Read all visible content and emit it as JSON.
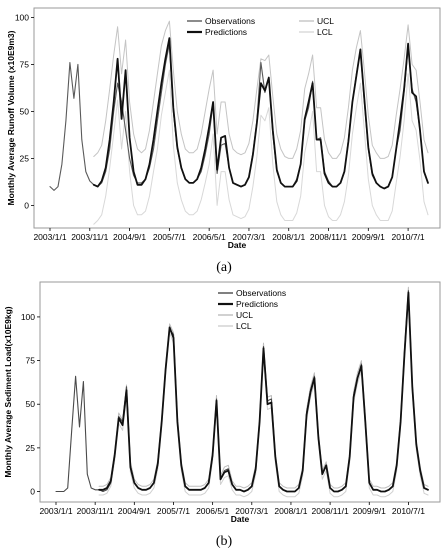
{
  "chart_data": [
    {
      "panel": "(a)",
      "type": "line",
      "xlabel": "Date",
      "ylabel": "Monthly Average Runoff Volume (x10E9m3)",
      "ylim": [
        -12,
        105
      ],
      "yticks": [
        0,
        25,
        50,
        75,
        100
      ],
      "xticks": [
        "2003/1/1",
        "2003/11/1",
        "2004/9/1",
        "2005/7/1",
        "2006/5/1",
        "2007/3/1",
        "2008/1/1",
        "2008/11/1",
        "2009/9/1",
        "2010/7/1"
      ],
      "legend": {
        "placement": "top-center",
        "columns": [
          [
            "Observations",
            "Predictions"
          ],
          [
            "UCL",
            "LCL"
          ]
        ]
      },
      "x": [
        "2003/1",
        "2003/2",
        "2003/3",
        "2003/4",
        "2003/5",
        "2003/6",
        "2003/7",
        "2003/8",
        "2003/9",
        "2003/10",
        "2003/11",
        "2003/12",
        "2004/1",
        "2004/2",
        "2004/3",
        "2004/4",
        "2004/5",
        "2004/6",
        "2004/7",
        "2004/8",
        "2004/9",
        "2004/10",
        "2004/11",
        "2004/12",
        "2005/1",
        "2005/2",
        "2005/3",
        "2005/4",
        "2005/5",
        "2005/6",
        "2005/7",
        "2005/8",
        "2005/9",
        "2005/10",
        "2005/11",
        "2005/12",
        "2006/1",
        "2006/2",
        "2006/3",
        "2006/4",
        "2006/5",
        "2006/6",
        "2006/7",
        "2006/8",
        "2006/9",
        "2006/10",
        "2006/11",
        "2006/12",
        "2007/1",
        "2007/2",
        "2007/3",
        "2007/4",
        "2007/5",
        "2007/6",
        "2007/7",
        "2007/8",
        "2007/9",
        "2007/10",
        "2007/11",
        "2007/12",
        "2008/1",
        "2008/2",
        "2008/3",
        "2008/4",
        "2008/5",
        "2008/6",
        "2008/7",
        "2008/8",
        "2008/9",
        "2008/10",
        "2008/11",
        "2008/12",
        "2009/1",
        "2009/2",
        "2009/3",
        "2009/4",
        "2009/5",
        "2009/6",
        "2009/7",
        "2009/8",
        "2009/9",
        "2009/10",
        "2009/11",
        "2009/12",
        "2010/1",
        "2010/2",
        "2010/3",
        "2010/4",
        "2010/5",
        "2010/6",
        "2010/7",
        "2010/8",
        "2010/9",
        "2010/10",
        "2010/11",
        "2010/12"
      ],
      "series": [
        {
          "name": "Observations",
          "color": "#5a5a5a",
          "values": [
            10,
            8,
            10,
            22,
            45,
            76,
            57,
            75,
            35,
            18,
            13,
            11,
            10,
            12,
            18,
            30,
            50,
            65,
            55,
            40,
            25,
            16,
            12,
            12,
            14,
            20,
            30,
            45,
            60,
            75,
            86,
            50,
            30,
            20,
            14,
            12,
            12,
            14,
            18,
            27,
            38,
            54,
            17,
            32,
            33,
            20,
            12,
            11,
            10,
            11,
            15,
            28,
            45,
            76,
            60,
            68,
            38,
            18,
            12,
            10,
            10,
            10,
            14,
            22,
            45,
            52,
            66,
            35,
            36,
            18,
            13,
            10,
            10,
            12,
            18,
            35,
            55,
            70,
            82,
            55,
            30,
            16,
            12,
            10,
            9,
            10,
            15,
            30,
            40,
            60,
            84,
            62,
            55,
            40,
            18,
            12
          ]
        },
        {
          "name": "Predictions",
          "color": "#111111",
          "values": [
            null,
            null,
            null,
            null,
            null,
            null,
            null,
            null,
            null,
            null,
            null,
            11,
            10,
            13,
            20,
            35,
            55,
            78,
            46,
            72,
            36,
            18,
            11,
            11,
            14,
            22,
            35,
            50,
            65,
            78,
            89,
            52,
            31,
            20,
            14,
            12,
            12,
            14,
            20,
            30,
            42,
            55,
            19,
            36,
            37,
            20,
            12,
            11,
            10,
            11,
            15,
            27,
            44,
            65,
            61,
            68,
            40,
            19,
            12,
            10,
            10,
            10,
            13,
            22,
            46,
            55,
            65,
            35,
            35,
            17,
            12,
            10,
            10,
            12,
            18,
            34,
            55,
            69,
            83,
            57,
            31,
            17,
            12,
            10,
            9,
            10,
            15,
            30,
            45,
            62,
            86,
            60,
            58,
            40,
            18,
            12
          ]
        },
        {
          "name": "UCL",
          "color": "#c4c4c4",
          "values": [
            null,
            null,
            null,
            null,
            null,
            null,
            null,
            null,
            null,
            null,
            null,
            26,
            28,
            32,
            45,
            62,
            80,
            95,
            70,
            88,
            55,
            38,
            30,
            28,
            30,
            40,
            55,
            70,
            85,
            93,
            98,
            72,
            50,
            38,
            30,
            28,
            28,
            30,
            38,
            50,
            62,
            72,
            38,
            55,
            55,
            38,
            30,
            28,
            27,
            28,
            33,
            45,
            62,
            78,
            77,
            80,
            58,
            38,
            30,
            26,
            25,
            25,
            30,
            40,
            62,
            70,
            80,
            52,
            52,
            35,
            28,
            25,
            25,
            28,
            36,
            52,
            72,
            84,
            93,
            72,
            48,
            32,
            28,
            25,
            25,
            26,
            32,
            48,
            62,
            78,
            96,
            75,
            72,
            55,
            35,
            28
          ]
        },
        {
          "name": "LCL",
          "color": "#d8d8d8",
          "values": [
            null,
            null,
            null,
            null,
            null,
            null,
            null,
            null,
            null,
            null,
            null,
            -10,
            -8,
            -5,
            5,
            20,
            38,
            56,
            30,
            50,
            18,
            0,
            -5,
            -5,
            -3,
            5,
            18,
            30,
            48,
            60,
            72,
            32,
            12,
            3,
            -3,
            -5,
            -5,
            -3,
            3,
            12,
            22,
            38,
            0,
            18,
            18,
            3,
            -5,
            -6,
            -7,
            -6,
            -2,
            10,
            26,
            48,
            45,
            52,
            22,
            2,
            -5,
            -8,
            -8,
            -8,
            -4,
            5,
            28,
            38,
            50,
            18,
            18,
            0,
            -6,
            -8,
            -8,
            -5,
            2,
            16,
            38,
            52,
            65,
            40,
            14,
            0,
            -5,
            -8,
            -8,
            -8,
            -3,
            12,
            26,
            45,
            70,
            45,
            40,
            24,
            2,
            -5
          ]
        }
      ]
    },
    {
      "panel": "(b)",
      "type": "line",
      "xlabel": "Date",
      "ylabel": "Monthly Average Sediment Load(x10E9kg)",
      "ylim": [
        -6,
        120
      ],
      "yticks": [
        0,
        25,
        50,
        75,
        100
      ],
      "xticks": [
        "2003/1/1",
        "2003/11/1",
        "2004/9/1",
        "2005/7/1",
        "2006/5/1",
        "2007/3/1",
        "2008/1/1",
        "2008/11/1",
        "2009/9/1",
        "2010/7/1"
      ],
      "legend": {
        "placement": "top-left",
        "columns": [
          [
            "Observations",
            "Predictions",
            "UCL",
            "LCL"
          ]
        ]
      },
      "x": [
        "2003/1",
        "2003/2",
        "2003/3",
        "2003/4",
        "2003/5",
        "2003/6",
        "2003/7",
        "2003/8",
        "2003/9",
        "2003/10",
        "2003/11",
        "2003/12",
        "2004/1",
        "2004/2",
        "2004/3",
        "2004/4",
        "2004/5",
        "2004/6",
        "2004/7",
        "2004/8",
        "2004/9",
        "2004/10",
        "2004/11",
        "2004/12",
        "2005/1",
        "2005/2",
        "2005/3",
        "2005/4",
        "2005/5",
        "2005/6",
        "2005/7",
        "2005/8",
        "2005/9",
        "2005/10",
        "2005/11",
        "2005/12",
        "2006/1",
        "2006/2",
        "2006/3",
        "2006/4",
        "2006/5",
        "2006/6",
        "2006/7",
        "2006/8",
        "2006/9",
        "2006/10",
        "2006/11",
        "2006/12",
        "2007/1",
        "2007/2",
        "2007/3",
        "2007/4",
        "2007/5",
        "2007/6",
        "2007/7",
        "2007/8",
        "2007/9",
        "2007/10",
        "2007/11",
        "2007/12",
        "2008/1",
        "2008/2",
        "2008/3",
        "2008/4",
        "2008/5",
        "2008/6",
        "2008/7",
        "2008/8",
        "2008/9",
        "2008/10",
        "2008/11",
        "2008/12",
        "2009/1",
        "2009/2",
        "2009/3",
        "2009/4",
        "2009/5",
        "2009/6",
        "2009/7",
        "2009/8",
        "2009/9",
        "2009/10",
        "2009/11",
        "2009/12",
        "2010/1",
        "2010/2",
        "2010/3",
        "2010/4",
        "2010/5",
        "2010/6",
        "2010/7",
        "2010/8",
        "2010/9",
        "2010/10",
        "2010/11",
        "2010/12"
      ],
      "series": [
        {
          "name": "Observations",
          "color": "#4a4a4a",
          "values": [
            0,
            0,
            0,
            2,
            35,
            66,
            37,
            63,
            10,
            2,
            1,
            1,
            0,
            1,
            5,
            20,
            43,
            40,
            60,
            15,
            5,
            2,
            1,
            1,
            2,
            5,
            15,
            40,
            70,
            93,
            90,
            40,
            15,
            3,
            1,
            1,
            1,
            1,
            2,
            5,
            20,
            53,
            7,
            12,
            13,
            4,
            1,
            1,
            0,
            1,
            3,
            12,
            40,
            83,
            52,
            53,
            20,
            3,
            1,
            0,
            0,
            0,
            2,
            12,
            45,
            58,
            66,
            30,
            10,
            15,
            2,
            0,
            0,
            1,
            3,
            20,
            55,
            65,
            73,
            40,
            5,
            1,
            1,
            0,
            0,
            1,
            3,
            15,
            40,
            80,
            115,
            60,
            27,
            12,
            2,
            1
          ]
        },
        {
          "name": "Predictions",
          "color": "#111111",
          "values": [
            null,
            null,
            null,
            null,
            null,
            null,
            null,
            null,
            null,
            null,
            null,
            1,
            1,
            2,
            6,
            21,
            42,
            38,
            58,
            14,
            5,
            2,
            1,
            1,
            2,
            5,
            16,
            40,
            70,
            94,
            88,
            40,
            15,
            3,
            1,
            1,
            1,
            1,
            2,
            5,
            21,
            52,
            7,
            11,
            12,
            4,
            1,
            1,
            0,
            1,
            3,
            13,
            40,
            82,
            50,
            51,
            20,
            3,
            1,
            0,
            0,
            0,
            2,
            12,
            44,
            57,
            65,
            31,
            10,
            15,
            2,
            0,
            0,
            1,
            3,
            20,
            54,
            65,
            72,
            40,
            5,
            1,
            1,
            0,
            0,
            1,
            3,
            15,
            40,
            79,
            114,
            60,
            27,
            12,
            2,
            1
          ]
        },
        {
          "name": "UCL",
          "color": "#bdbdbd",
          "values": [
            null,
            null,
            null,
            null,
            null,
            null,
            null,
            null,
            null,
            null,
            null,
            3,
            3,
            4,
            8,
            23,
            45,
            41,
            61,
            17,
            7,
            4,
            3,
            3,
            4,
            7,
            18,
            42,
            72,
            96,
            91,
            43,
            17,
            5,
            3,
            3,
            3,
            3,
            4,
            7,
            23,
            55,
            9,
            14,
            15,
            6,
            3,
            3,
            2,
            3,
            5,
            15,
            42,
            85,
            54,
            55,
            22,
            5,
            3,
            2,
            2,
            2,
            4,
            14,
            47,
            60,
            68,
            33,
            12,
            17,
            4,
            2,
            2,
            3,
            5,
            22,
            57,
            68,
            75,
            43,
            7,
            3,
            3,
            2,
            2,
            3,
            5,
            17,
            42,
            82,
            117,
            63,
            29,
            14,
            4,
            3
          ]
        },
        {
          "name": "LCL",
          "color": "#d0d0d0",
          "values": [
            null,
            null,
            null,
            null,
            null,
            null,
            null,
            null,
            null,
            null,
            null,
            -2,
            -2,
            -1,
            3,
            18,
            39,
            35,
            55,
            11,
            2,
            -1,
            -2,
            -2,
            -1,
            2,
            13,
            37,
            67,
            91,
            85,
            37,
            12,
            0,
            -2,
            -2,
            -2,
            -2,
            -1,
            2,
            18,
            49,
            4,
            8,
            9,
            1,
            -2,
            -2,
            -3,
            -2,
            0,
            10,
            37,
            79,
            47,
            48,
            17,
            0,
            -2,
            -3,
            -3,
            -3,
            -1,
            9,
            41,
            54,
            62,
            28,
            7,
            12,
            -1,
            -3,
            -3,
            -2,
            0,
            17,
            51,
            62,
            69,
            37,
            2,
            -2,
            -2,
            -3,
            -3,
            -2,
            0,
            12,
            37,
            76,
            111,
            57,
            24,
            9,
            -1,
            -2
          ]
        }
      ]
    }
  ]
}
